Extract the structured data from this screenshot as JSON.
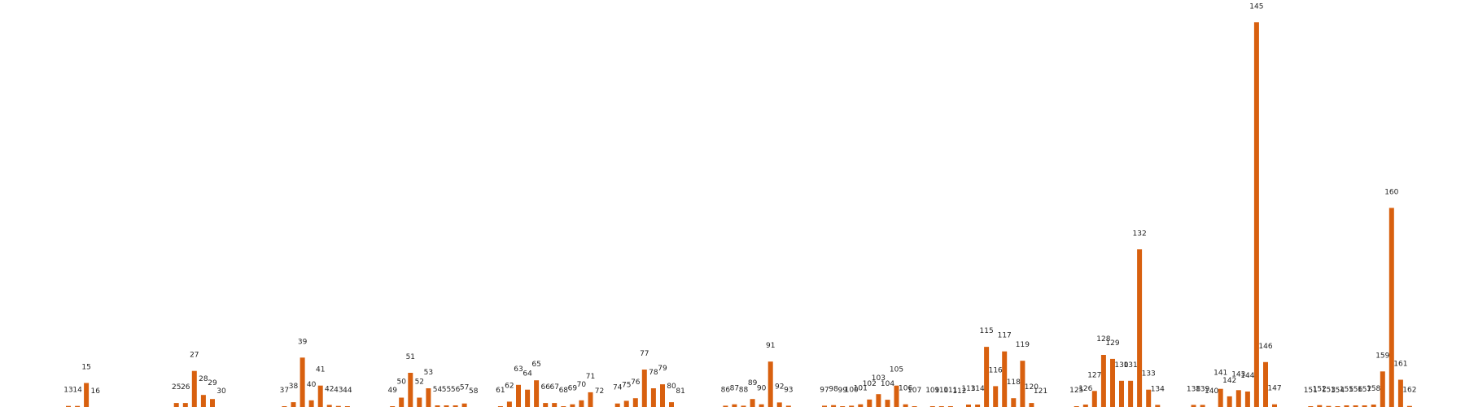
{
  "chart_data": {
    "type": "bar",
    "title": "",
    "xlabel": "",
    "ylabel": "",
    "ylim": [
      0,
      145
    ],
    "grid": false,
    "color": "#d8600f",
    "axes_visible": false,
    "bars": [
      {
        "x": 13,
        "label": "13",
        "value": 0.4
      },
      {
        "x": 14,
        "label": "14",
        "value": 0.4
      },
      {
        "x": 15,
        "label": "15",
        "value": 9
      },
      {
        "x": 16,
        "label": "16",
        "value": 0
      },
      {
        "x": 25,
        "label": "25",
        "value": 1.5
      },
      {
        "x": 26,
        "label": "26",
        "value": 1.5
      },
      {
        "x": 27,
        "label": "27",
        "value": 13.5
      },
      {
        "x": 28,
        "label": "28",
        "value": 4.5
      },
      {
        "x": 29,
        "label": "29",
        "value": 3
      },
      {
        "x": 30,
        "label": "30",
        "value": 0
      },
      {
        "x": 37,
        "label": "37",
        "value": 0.3
      },
      {
        "x": 38,
        "label": "38",
        "value": 1.8
      },
      {
        "x": 39,
        "label": "39",
        "value": 18.5
      },
      {
        "x": 40,
        "label": "40",
        "value": 2.5
      },
      {
        "x": 41,
        "label": "41",
        "value": 8
      },
      {
        "x": 42,
        "label": "42",
        "value": 0.8
      },
      {
        "x": 43,
        "label": "43",
        "value": 0.4
      },
      {
        "x": 44,
        "label": "44",
        "value": 0.3
      },
      {
        "x": 49,
        "label": "49",
        "value": 0.3
      },
      {
        "x": 50,
        "label": "50",
        "value": 3.5
      },
      {
        "x": 51,
        "label": "51",
        "value": 12.8
      },
      {
        "x": 52,
        "label": "52",
        "value": 3.5
      },
      {
        "x": 53,
        "label": "53",
        "value": 7
      },
      {
        "x": 54,
        "label": "54",
        "value": 0.6
      },
      {
        "x": 55,
        "label": "55",
        "value": 0.6
      },
      {
        "x": 56,
        "label": "56",
        "value": 0.6
      },
      {
        "x": 57,
        "label": "57",
        "value": 1.3
      },
      {
        "x": 58,
        "label": "58",
        "value": 0
      },
      {
        "x": 61,
        "label": "61",
        "value": 0.3
      },
      {
        "x": 62,
        "label": "62",
        "value": 2
      },
      {
        "x": 63,
        "label": "63",
        "value": 8.3
      },
      {
        "x": 64,
        "label": "64",
        "value": 6.5
      },
      {
        "x": 65,
        "label": "65",
        "value": 10
      },
      {
        "x": 66,
        "label": "66",
        "value": 1.5
      },
      {
        "x": 67,
        "label": "67",
        "value": 1.5
      },
      {
        "x": 68,
        "label": "68",
        "value": 0.3
      },
      {
        "x": 69,
        "label": "69",
        "value": 1
      },
      {
        "x": 70,
        "label": "70",
        "value": 2.5
      },
      {
        "x": 71,
        "label": "71",
        "value": 5.5
      },
      {
        "x": 72,
        "label": "72",
        "value": 0
      },
      {
        "x": 74,
        "label": "74",
        "value": 1.3
      },
      {
        "x": 75,
        "label": "75",
        "value": 2.3
      },
      {
        "x": 76,
        "label": "76",
        "value": 3.3
      },
      {
        "x": 77,
        "label": "77",
        "value": 14
      },
      {
        "x": 78,
        "label": "78",
        "value": 7
      },
      {
        "x": 79,
        "label": "79",
        "value": 8.5
      },
      {
        "x": 80,
        "label": "80",
        "value": 1.8
      },
      {
        "x": 81,
        "label": "81",
        "value": 0
      },
      {
        "x": 86,
        "label": "86",
        "value": 0.5
      },
      {
        "x": 87,
        "label": "87",
        "value": 1
      },
      {
        "x": 88,
        "label": "88",
        "value": 0.5
      },
      {
        "x": 89,
        "label": "89",
        "value": 3
      },
      {
        "x": 90,
        "label": "90",
        "value": 1
      },
      {
        "x": 91,
        "label": "91",
        "value": 17
      },
      {
        "x": 92,
        "label": "92",
        "value": 1.7
      },
      {
        "x": 93,
        "label": "93",
        "value": 0.5
      },
      {
        "x": 97,
        "label": "97",
        "value": 0.5
      },
      {
        "x": 98,
        "label": "98",
        "value": 0.7
      },
      {
        "x": 99,
        "label": "99",
        "value": 0.3
      },
      {
        "x": 100,
        "label": "100",
        "value": 0.5
      },
      {
        "x": 101,
        "label": "101",
        "value": 1
      },
      {
        "x": 102,
        "label": "102",
        "value": 2.8
      },
      {
        "x": 103,
        "label": "103",
        "value": 4.8
      },
      {
        "x": 104,
        "label": "104",
        "value": 2.7
      },
      {
        "x": 105,
        "label": "105",
        "value": 8
      },
      {
        "x": 106,
        "label": "106",
        "value": 1
      },
      {
        "x": 107,
        "label": "107",
        "value": 0.3
      },
      {
        "x": 109,
        "label": "109",
        "value": 0.3
      },
      {
        "x": 110,
        "label": "110",
        "value": 0.3
      },
      {
        "x": 111,
        "label": "111",
        "value": 0.3
      },
      {
        "x": 112,
        "label": "112",
        "value": 0
      },
      {
        "x": 113,
        "label": "113",
        "value": 0.9
      },
      {
        "x": 114,
        "label": "114",
        "value": 0.9
      },
      {
        "x": 115,
        "label": "115",
        "value": 22.5
      },
      {
        "x": 116,
        "label": "116",
        "value": 7.8
      },
      {
        "x": 117,
        "label": "117",
        "value": 20.8
      },
      {
        "x": 118,
        "label": "118",
        "value": 3.3
      },
      {
        "x": 119,
        "label": "119",
        "value": 17.3
      },
      {
        "x": 120,
        "label": "120",
        "value": 1.5
      },
      {
        "x": 121,
        "label": "121",
        "value": 0
      },
      {
        "x": 125,
        "label": "125",
        "value": 0.3
      },
      {
        "x": 126,
        "label": "126",
        "value": 0.9
      },
      {
        "x": 127,
        "label": "127",
        "value": 6
      },
      {
        "x": 128,
        "label": "128",
        "value": 19.5
      },
      {
        "x": 129,
        "label": "129",
        "value": 18
      },
      {
        "x": 130,
        "label": "130",
        "value": 9.8
      },
      {
        "x": 131,
        "label": "131",
        "value": 9.8
      },
      {
        "x": 132,
        "label": "132",
        "value": 59
      },
      {
        "x": 133,
        "label": "133",
        "value": 6.5
      },
      {
        "x": 134,
        "label": "134",
        "value": 0.8
      },
      {
        "x": 138,
        "label": "138",
        "value": 0.8
      },
      {
        "x": 139,
        "label": "139",
        "value": 0.8
      },
      {
        "x": 140,
        "label": "140",
        "value": 0
      },
      {
        "x": 141,
        "label": "141",
        "value": 6.8
      },
      {
        "x": 142,
        "label": "142",
        "value": 4
      },
      {
        "x": 143,
        "label": "143",
        "value": 6.3
      },
      {
        "x": 144,
        "label": "144",
        "value": 5.8
      },
      {
        "x": 145,
        "label": "145",
        "value": 144
      },
      {
        "x": 146,
        "label": "146",
        "value": 16.8
      },
      {
        "x": 147,
        "label": "147",
        "value": 1
      },
      {
        "x": 151,
        "label": "151",
        "value": 0.3
      },
      {
        "x": 152,
        "label": "152",
        "value": 0.7
      },
      {
        "x": 153,
        "label": "153",
        "value": 0.4
      },
      {
        "x": 154,
        "label": "154",
        "value": 0.3
      },
      {
        "x": 155,
        "label": "155",
        "value": 0.6
      },
      {
        "x": 156,
        "label": "156",
        "value": 0.6
      },
      {
        "x": 157,
        "label": "157",
        "value": 0.6
      },
      {
        "x": 158,
        "label": "158",
        "value": 0.9
      },
      {
        "x": 159,
        "label": "159",
        "value": 13.3
      },
      {
        "x": 160,
        "label": "160",
        "value": 74.5
      },
      {
        "x": 161,
        "label": "161",
        "value": 10.2
      },
      {
        "x": 162,
        "label": "162",
        "value": 0.4
      }
    ]
  }
}
